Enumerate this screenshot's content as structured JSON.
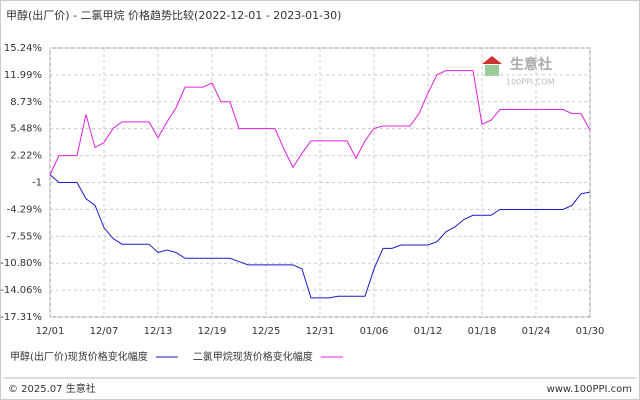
{
  "chart_data": {
    "type": "line",
    "title": "甲醇(出厂价) - 二氯甲烷 价格趋势比较(2022-12-01 - 2023-01-30)",
    "categories": [
      "12/01",
      null,
      null,
      null,
      null,
      null,
      "12/07",
      null,
      null,
      null,
      null,
      null,
      "12/13",
      null,
      null,
      null,
      null,
      null,
      "12/19",
      null,
      null,
      null,
      null,
      null,
      "12/25",
      null,
      null,
      null,
      null,
      null,
      "12/31",
      null,
      null,
      null,
      null,
      null,
      "01/06",
      null,
      null,
      null,
      null,
      null,
      "01/12",
      null,
      null,
      null,
      null,
      null,
      "01/18",
      null,
      null,
      null,
      null,
      null,
      "01/24",
      null,
      null,
      null,
      null,
      null,
      "01/30"
    ],
    "series": [
      {
        "name": "甲醇(出厂价)现货价格变化幅度",
        "color": "#1a1acc",
        "values": [
          -0.1,
          -1.04,
          -1.04,
          -1.04,
          -3.0,
          -3.8,
          -6.5,
          -7.8,
          -8.5,
          -8.5,
          -8.5,
          -8.5,
          -9.5,
          -9.2,
          -9.5,
          -10.2,
          -10.2,
          -10.2,
          -10.2,
          -10.2,
          -10.2,
          -10.6,
          -11.0,
          -11.0,
          -11.0,
          -11.0,
          -11.0,
          -11.0,
          -11.5,
          -15.0,
          -15.0,
          -15.0,
          -14.8,
          -14.8,
          -14.8,
          -14.8,
          -11.5,
          -9.0,
          -9.0,
          -8.6,
          -8.6,
          -8.6,
          -8.6,
          -8.2,
          -7.0,
          -6.4,
          -5.5,
          -5.0,
          -5.0,
          -5.0,
          -4.3,
          -4.3,
          -4.3,
          -4.3,
          -4.3,
          -4.3,
          -4.3,
          -4.3,
          -3.8,
          -2.4,
          -2.2
        ]
      },
      {
        "name": "二氯甲烷现货价格变化幅度",
        "color": "#e020e0",
        "values": [
          -0.1,
          2.22,
          2.22,
          2.22,
          7.2,
          3.2,
          3.8,
          5.5,
          6.3,
          6.3,
          6.3,
          6.3,
          4.4,
          6.3,
          8.0,
          10.5,
          10.5,
          10.5,
          11.0,
          8.73,
          8.73,
          5.48,
          5.48,
          5.48,
          5.48,
          5.48,
          3.0,
          0.8,
          2.5,
          4.0,
          4.0,
          4.0,
          4.0,
          4.0,
          1.9,
          4.0,
          5.5,
          5.8,
          5.8,
          5.8,
          5.8,
          7.3,
          9.8,
          12.0,
          12.5,
          12.5,
          12.5,
          12.5,
          6.0,
          6.5,
          7.8,
          7.8,
          7.8,
          7.8,
          7.8,
          7.8,
          7.8,
          7.8,
          7.3,
          7.3,
          5.3
        ]
      }
    ],
    "ylim": [
      -17.31,
      15.24
    ],
    "yticks": [
      {
        "value": 15.24,
        "label": "15.24%"
      },
      {
        "value": 11.99,
        "label": "11.99%"
      },
      {
        "value": 8.73,
        "label": "8.73%"
      },
      {
        "value": 5.48,
        "label": "5.48%"
      },
      {
        "value": 2.22,
        "label": "2.22%"
      },
      {
        "value": -1.04,
        "label": "-1"
      },
      {
        "value": -4.29,
        "label": "-4.29%"
      },
      {
        "value": -7.55,
        "label": "-7.55%"
      },
      {
        "value": -10.8,
        "label": "-10.80%"
      },
      {
        "value": -14.06,
        "label": "-14.06%"
      },
      {
        "value": -17.31,
        "label": "-17.31%"
      }
    ],
    "grid": true,
    "watermark": {
      "name": "生意社",
      "site": "100PPI.COM"
    },
    "footer": {
      "left": "© 2025.07 生意社",
      "right": "www.100PPI.com"
    }
  }
}
